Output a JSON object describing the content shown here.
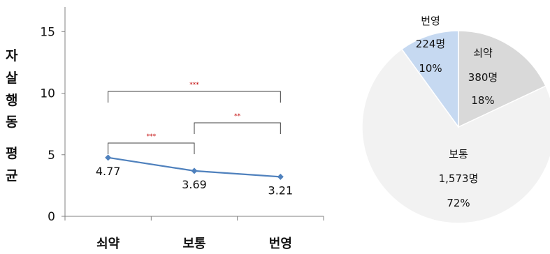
{
  "chart_data": [
    {
      "type": "line",
      "ylabel": "자살행동 평균",
      "ylabel_chars": [
        "자",
        "살",
        "행",
        "동",
        "평",
        "균"
      ],
      "categories": [
        "쇠약",
        "보통",
        "번영"
      ],
      "series": [
        {
          "values": [
            4.77,
            3.69,
            3.21
          ],
          "value_labels": [
            "4.77",
            "3.69",
            "3.21"
          ],
          "color": "#4f81bd"
        }
      ],
      "ylim": [
        0,
        17
      ],
      "yticks": [
        0,
        5,
        10,
        15
      ],
      "ytick_labels": [
        "0",
        "5",
        "10",
        "15"
      ],
      "grid": false,
      "significance": [
        {
          "from": 0,
          "to": 1,
          "label": "***"
        },
        {
          "from": 1,
          "to": 2,
          "label": "**"
        },
        {
          "from": 0,
          "to": 2,
          "label": "***"
        }
      ],
      "significance_color": "#c00000"
    },
    {
      "type": "pie",
      "slices": [
        {
          "name": "쇠약",
          "count": "380명",
          "percent": "18%",
          "value": 18,
          "color": "#d9d9d9"
        },
        {
          "name": "보통",
          "count": "1,573명",
          "percent": "72%",
          "value": 72,
          "color": "#f2f2f2"
        },
        {
          "name": "번영",
          "count": "224명",
          "percent": "10%",
          "value": 10,
          "color": "#c6d9f1"
        }
      ]
    }
  ]
}
